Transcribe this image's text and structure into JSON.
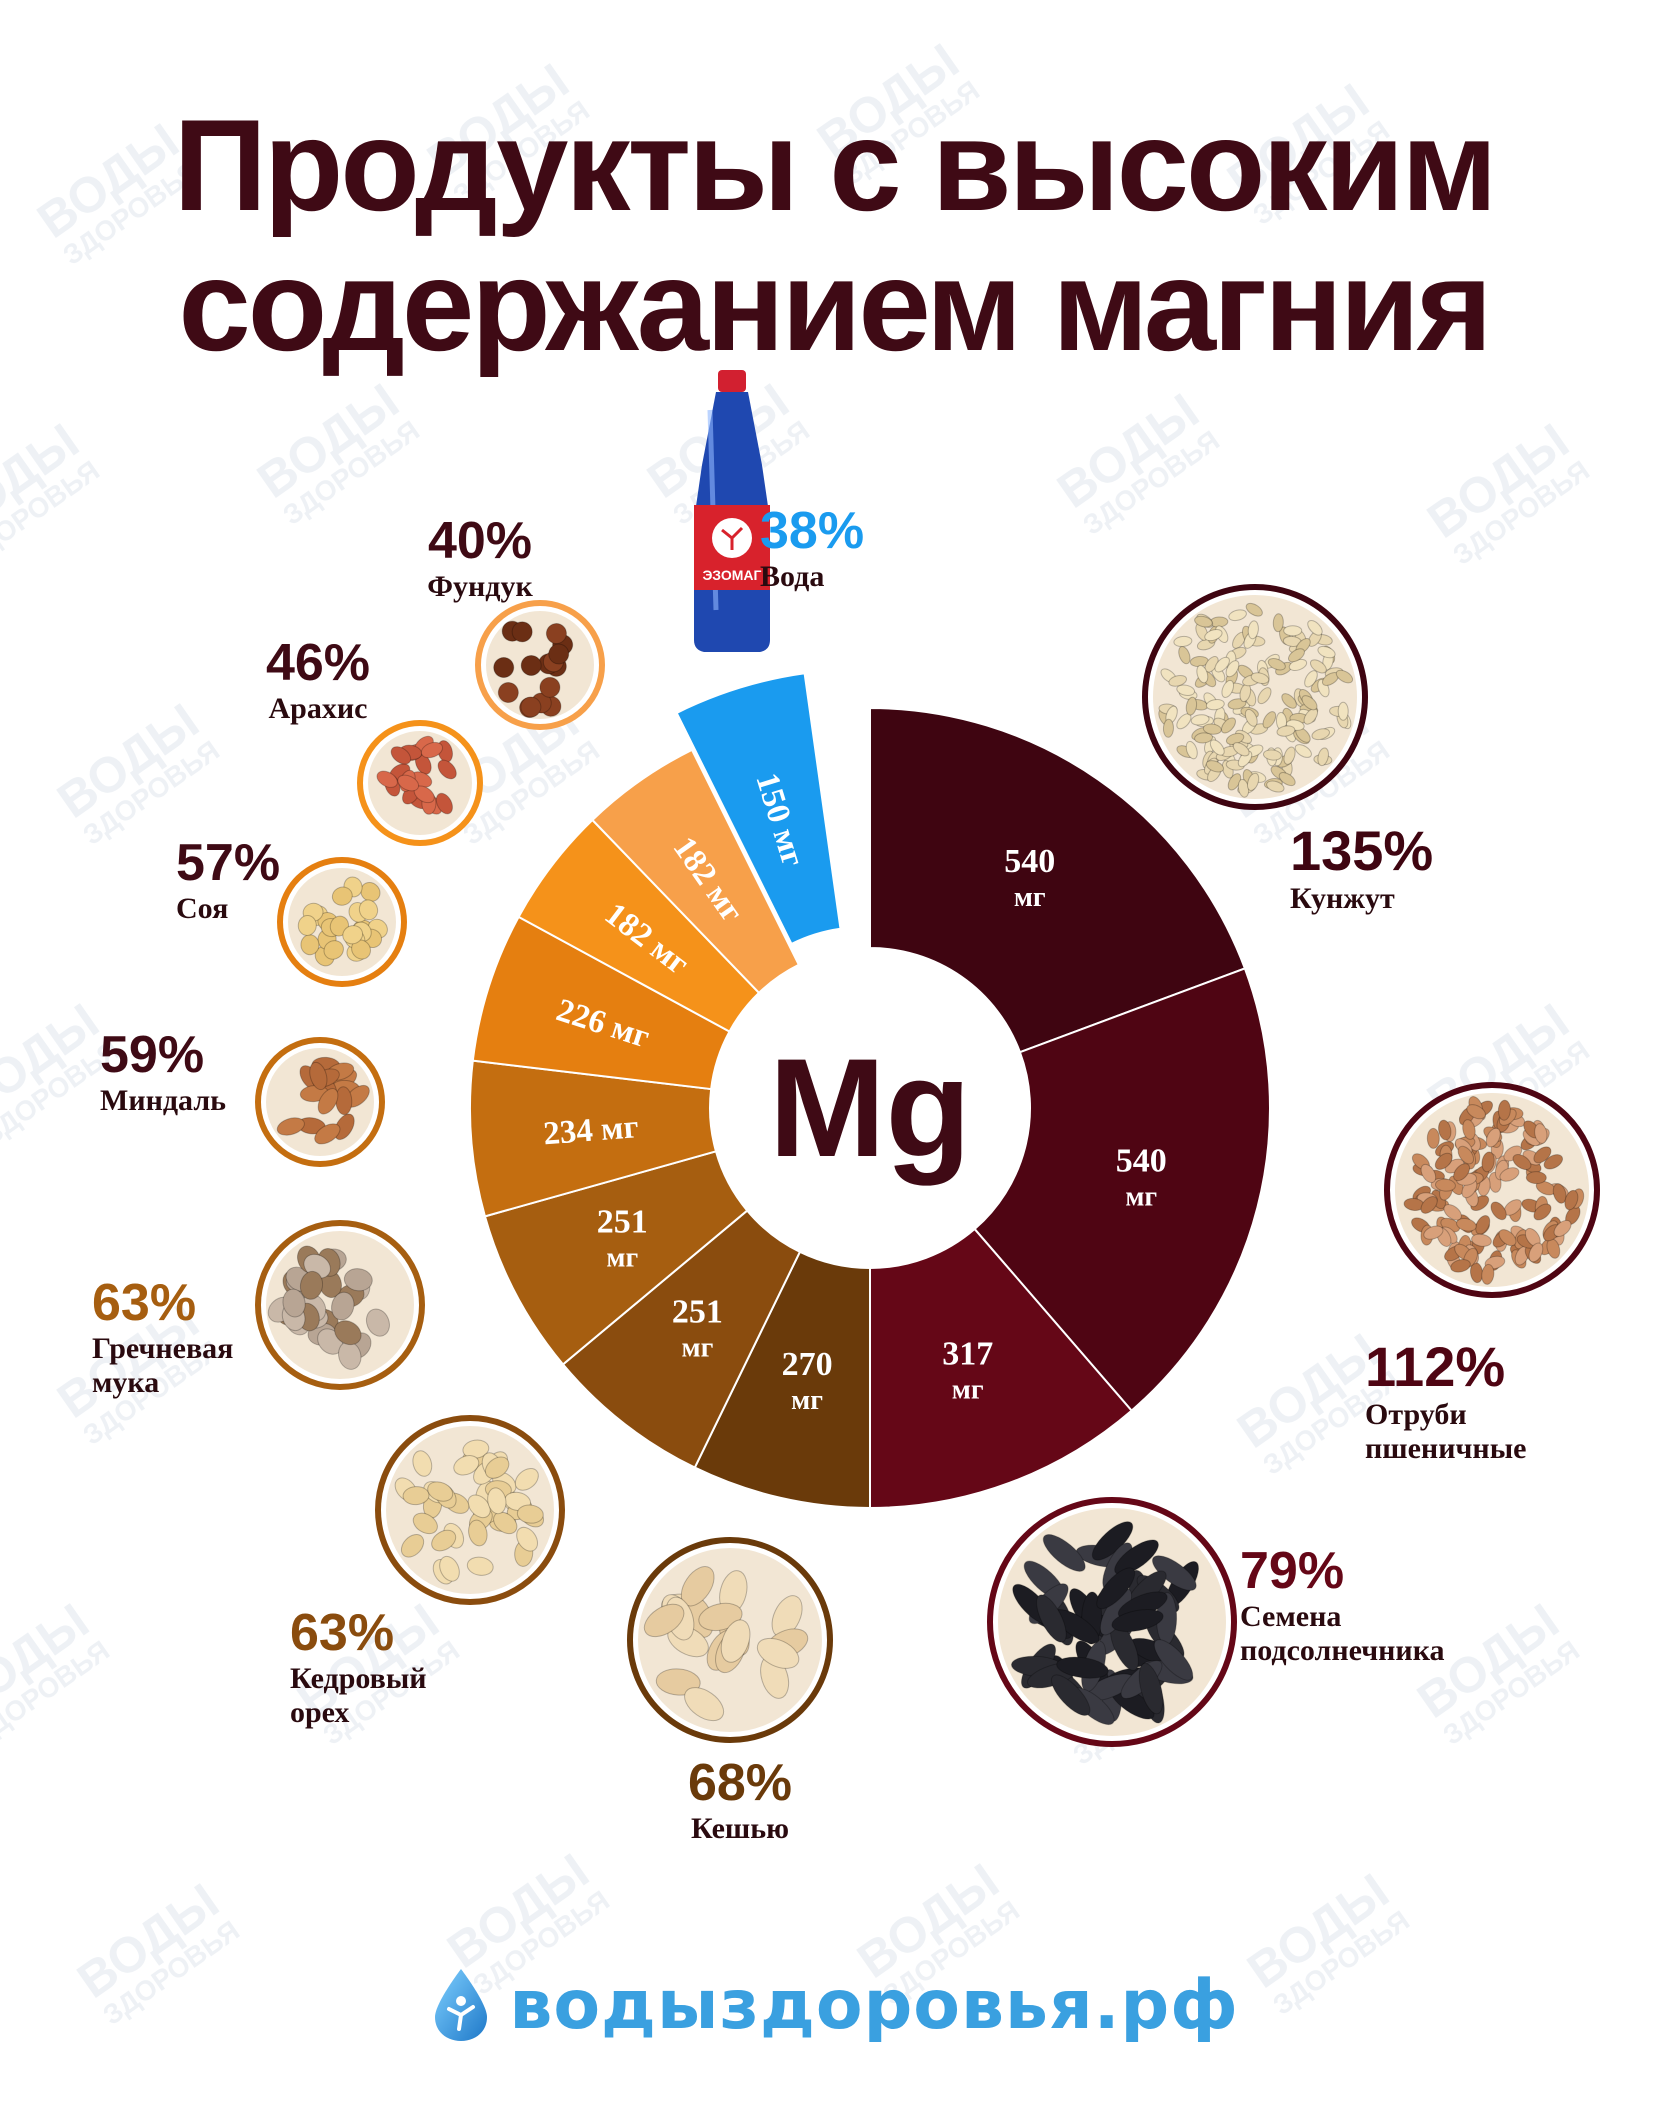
{
  "title": {
    "line1": "Продукты с высоким",
    "line2": "содержанием магния"
  },
  "center_label": "Mg",
  "watermark_text": "ВОДЫ ЗДОРОВЬЯ",
  "footer": {
    "site": "водыздоровья.рф",
    "logo_icon": "water-drop-logo-icon"
  },
  "colors": {
    "title": "#3f0a15",
    "water": "#1a9bef",
    "sesame": "#3f0511",
    "bran": "#4f0513",
    "sunflower": "#650717",
    "cashew": "#6a3a0a",
    "cedar": "#8a4c0e",
    "buckwheat": "#a65e10",
    "almond": "#c46e10",
    "soy": "#e57f10",
    "peanut": "#f5921a",
    "hazelnut": "#f7a04a"
  },
  "chart_data": {
    "type": "pie",
    "subtype": "donut",
    "unit": "мг",
    "center_label": "Mg",
    "slices": [
      {
        "key": "sesame",
        "label_value": "540",
        "label_unit": "мг",
        "value": 540,
        "percent": "135%",
        "name": "Кунжут",
        "icon": "sesame-seeds-photo-icon"
      },
      {
        "key": "bran",
        "label_value": "540",
        "label_unit": "мг",
        "value": 540,
        "percent": "112%",
        "name": "Отруби пшеничные",
        "icon": "wheat-bran-photo-icon"
      },
      {
        "key": "sunflower",
        "label_value": "317",
        "label_unit": "мг",
        "value": 317,
        "percent": "79%",
        "name": "Семена подсолнечника",
        "icon": "sunflower-seeds-photo-icon"
      },
      {
        "key": "cashew",
        "label_value": "270",
        "label_unit": "мг",
        "value": 270,
        "percent": "68%",
        "name": "Кешью",
        "icon": "cashew-photo-icon"
      },
      {
        "key": "cedar",
        "label_value": "251",
        "label_unit": "мг",
        "value": 251,
        "percent": "63%",
        "name": "Кедровый орех",
        "icon": "pine-nuts-photo-icon"
      },
      {
        "key": "buckwheat",
        "label_value": "251",
        "label_unit": "мг",
        "value": 251,
        "percent": "63%",
        "name": "Гречневая мука",
        "icon": "buckwheat-flour-photo-icon"
      },
      {
        "key": "almond",
        "label_value": "234 мг",
        "value": 234,
        "percent": "59%",
        "name": "Миндаль",
        "icon": "almonds-photo-icon"
      },
      {
        "key": "soy",
        "label_value": "226 мг",
        "value": 226,
        "percent": "57%",
        "name": "Соя",
        "icon": "soybeans-photo-icon"
      },
      {
        "key": "peanut",
        "label_value": "182 мг",
        "value": 182,
        "percent": "46%",
        "name": "Арахис",
        "icon": "peanuts-photo-icon"
      },
      {
        "key": "hazelnut",
        "label_value": "182 мг",
        "value": 182,
        "percent": "40%",
        "name": "Фундук",
        "icon": "hazelnuts-photo-icon"
      },
      {
        "key": "water",
        "label_value": "150 мг",
        "value": 150,
        "percent": "38%",
        "name": "Вода",
        "icon": "water-bottle-icon",
        "bottle_label": "ЭЗОМАГ",
        "exploded": true
      }
    ]
  }
}
